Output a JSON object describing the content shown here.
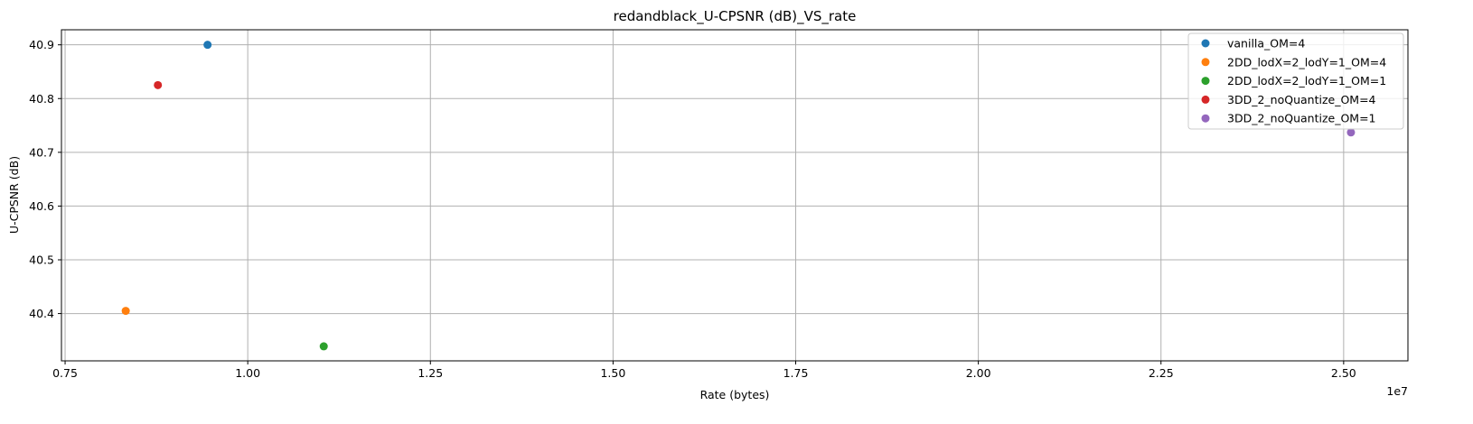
{
  "chart_data": {
    "type": "scatter",
    "title": "redandblack_U-CPSNR (dB)_VS_rate",
    "xlabel": "Rate (bytes)",
    "ylabel": "U-CPSNR (dB)",
    "x_offset_label": "1e7",
    "x_scale": 10000000,
    "xlim": [
      0.745,
      2.588
    ],
    "ylim": [
      40.312,
      40.928
    ],
    "xticks": [
      0.75,
      1.0,
      1.25,
      1.5,
      1.75,
      2.0,
      2.25,
      2.5
    ],
    "xtick_labels": [
      "0.75",
      "1.00",
      "1.25",
      "1.50",
      "1.75",
      "2.00",
      "2.25",
      "2.50"
    ],
    "yticks": [
      40.4,
      40.5,
      40.6,
      40.7,
      40.8,
      40.9
    ],
    "ytick_labels": [
      "40.4",
      "40.5",
      "40.6",
      "40.7",
      "40.8",
      "40.9"
    ],
    "grid": true,
    "legend_position": "top-right",
    "series": [
      {
        "name": "vanilla_OM=4",
        "color": "#1f77b4",
        "x": [
          0.945
        ],
        "y": [
          40.9
        ]
      },
      {
        "name": "2DD_lodX=2_lodY=1_OM=4",
        "color": "#ff7f0e",
        "x": [
          0.833
        ],
        "y": [
          40.405
        ]
      },
      {
        "name": "2DD_lodX=2_lodY=1_OM=1",
        "color": "#2ca02c",
        "x": [
          1.104
        ],
        "y": [
          40.339
        ]
      },
      {
        "name": "3DD_2_noQuantize_OM=4",
        "color": "#d62728",
        "x": [
          0.877
        ],
        "y": [
          40.825
        ]
      },
      {
        "name": "3DD_2_noQuantize_OM=1",
        "color": "#9467bd",
        "x": [
          2.51
        ],
        "y": [
          40.737
        ]
      }
    ]
  }
}
